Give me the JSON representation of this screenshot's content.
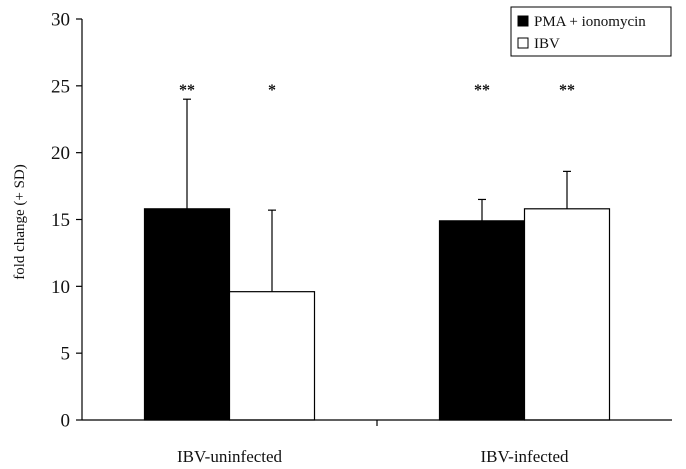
{
  "chart_data": {
    "type": "bar",
    "title": "",
    "xlabel": "",
    "ylabel": "fold change (+ SD)",
    "ylim": [
      0,
      30
    ],
    "yticks": [
      0,
      5,
      10,
      15,
      20,
      25,
      30
    ],
    "categories": [
      "IBV-uninfected",
      "IBV-infected"
    ],
    "grid": false,
    "legend_position": "top-right",
    "series": [
      {
        "name": "PMA + ionomycin",
        "color": "#000000",
        "values": [
          15.8,
          14.9
        ],
        "errors": [
          8.2,
          1.6
        ],
        "significance": [
          "**",
          "**"
        ]
      },
      {
        "name": "IBV",
        "color": "#ffffff",
        "values": [
          9.6,
          15.8
        ],
        "errors": [
          6.1,
          2.8
        ],
        "significance": [
          "*",
          "**"
        ]
      }
    ]
  }
}
